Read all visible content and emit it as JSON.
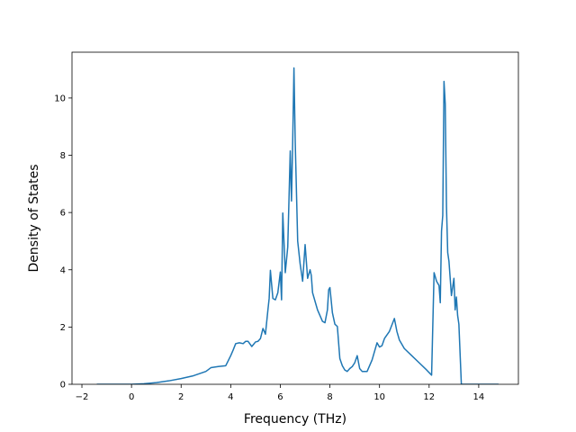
{
  "chart_data": {
    "type": "line",
    "title": "",
    "xlabel": "Frequency (THz)",
    "ylabel": "Density of States",
    "xlim": [
      -2.4,
      15.6
    ],
    "ylim": [
      0,
      11.6
    ],
    "xticks": [
      -2,
      0,
      2,
      4,
      6,
      8,
      10,
      12,
      14
    ],
    "yticks": [
      0,
      2,
      4,
      6,
      8,
      10
    ],
    "grid": false,
    "legend": "none",
    "color": "#1f77b4",
    "series": [
      {
        "name": "",
        "x": [
          -1.4,
          -1.0,
          0.0,
          0.5,
          1.0,
          1.5,
          2.0,
          2.5,
          3.0,
          3.2,
          3.5,
          3.8,
          4.0,
          4.1,
          4.2,
          4.35,
          4.5,
          4.6,
          4.7,
          4.85,
          5.0,
          5.1,
          5.2,
          5.3,
          5.4,
          5.5,
          5.55,
          5.6,
          5.7,
          5.8,
          5.9,
          6.0,
          6.05,
          6.1,
          6.2,
          6.3,
          6.4,
          6.45,
          6.5,
          6.55,
          6.6,
          6.7,
          6.8,
          6.9,
          7.0,
          7.1,
          7.2,
          7.25,
          7.3,
          7.4,
          7.5,
          7.6,
          7.7,
          7.8,
          7.9,
          7.95,
          8.0,
          8.1,
          8.2,
          8.3,
          8.4,
          8.5,
          8.6,
          8.7,
          8.8,
          8.9,
          9.0,
          9.1,
          9.2,
          9.3,
          9.5,
          9.7,
          9.9,
          10.0,
          10.1,
          10.2,
          10.4,
          10.6,
          10.7,
          10.8,
          11.0,
          11.3,
          11.6,
          11.9,
          12.1,
          12.2,
          12.3,
          12.4,
          12.45,
          12.5,
          12.55,
          12.6,
          12.65,
          12.7,
          12.75,
          12.8,
          12.9,
          13.0,
          13.05,
          13.1,
          13.15,
          13.2,
          13.3,
          13.4,
          13.5,
          14.0,
          14.8
        ],
        "y": [
          0.0,
          0.0,
          0.0,
          0.02,
          0.06,
          0.12,
          0.2,
          0.3,
          0.45,
          0.58,
          0.62,
          0.65,
          1.0,
          1.2,
          1.42,
          1.45,
          1.42,
          1.5,
          1.5,
          1.32,
          1.48,
          1.5,
          1.6,
          1.95,
          1.75,
          2.6,
          3.0,
          3.98,
          3.0,
          2.95,
          3.2,
          3.92,
          2.95,
          5.98,
          3.9,
          4.8,
          8.15,
          6.4,
          8.5,
          11.05,
          8.5,
          5.0,
          4.2,
          3.6,
          4.88,
          3.7,
          4.0,
          3.8,
          3.2,
          2.9,
          2.6,
          2.4,
          2.2,
          2.15,
          2.6,
          3.3,
          3.38,
          2.5,
          2.1,
          2.02,
          0.9,
          0.65,
          0.5,
          0.45,
          0.55,
          0.62,
          0.75,
          1.0,
          0.55,
          0.45,
          0.45,
          0.85,
          1.45,
          1.3,
          1.35,
          1.6,
          1.85,
          2.3,
          1.85,
          1.55,
          1.25,
          1.0,
          0.75,
          0.5,
          0.32,
          3.9,
          3.6,
          3.45,
          2.85,
          5.35,
          5.9,
          10.58,
          9.8,
          6.2,
          4.6,
          4.3,
          3.1,
          3.7,
          2.6,
          3.05,
          2.4,
          2.1,
          0.0,
          0.0,
          0.0,
          0.0,
          0.0
        ]
      }
    ]
  }
}
